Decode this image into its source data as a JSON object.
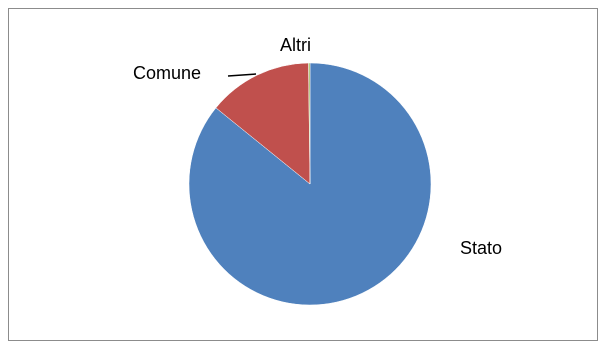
{
  "chart_data": {
    "type": "pie",
    "title": "",
    "categories": [
      "Stato",
      "Comune",
      "Altri"
    ],
    "values": [
      86,
      14,
      0.2
    ],
    "colors": [
      "#4f81bd",
      "#c0504d",
      "#9bbb59"
    ],
    "legend": "none",
    "labels": {
      "stato": "Stato",
      "comune": "Comune",
      "altri": "Altri"
    }
  }
}
